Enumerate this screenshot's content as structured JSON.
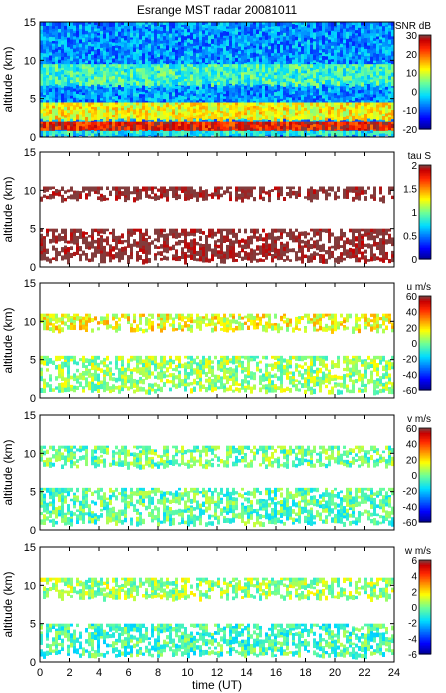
{
  "chart_data": {
    "type": "heatmap",
    "title": "Esrange MST radar 20081011",
    "xlabel": "time (UT)",
    "x_ticks": [
      0,
      2,
      4,
      6,
      8,
      10,
      12,
      14,
      16,
      18,
      20,
      22,
      24
    ],
    "xlim": [
      0,
      24
    ],
    "panels": [
      {
        "ylabel": "altitude (km)",
        "ylim": [
          0,
          15
        ],
        "y_ticks": [
          0,
          5,
          10,
          15
        ],
        "colorbar": {
          "label": "SNR dB",
          "range": [
            -20,
            30
          ],
          "ticks": [
            30,
            20,
            10,
            0,
            -10,
            -20
          ]
        },
        "layers": [
          {
            "alt_range": [
              0.3,
              15.0
            ],
            "value": -6
          },
          {
            "alt_range": [
              7.0,
              9.5
            ],
            "value": 2
          },
          {
            "alt_range": [
              2.5,
              4.5
            ],
            "value": 12
          },
          {
            "alt_range": [
              1.0,
              2.0
            ],
            "value": 25
          },
          {
            "alt_range": [
              0.4,
              0.8
            ],
            "value": 0
          }
        ]
      },
      {
        "ylabel": "altitude (km)",
        "ylim": [
          0,
          15
        ],
        "y_ticks": [
          0,
          5,
          10,
          15
        ],
        "colorbar": {
          "label": "tau S",
          "range": [
            0,
            2
          ],
          "ticks": [
            2,
            1.5,
            1,
            0.5,
            0
          ]
        },
        "layers": [
          {
            "alt_range": [
              9.0,
              10.5
            ],
            "value": 2.0
          },
          {
            "alt_range": [
              1.0,
              5.0
            ],
            "value": 2.0
          }
        ]
      },
      {
        "ylabel": "altitude (km)",
        "ylim": [
          0,
          15
        ],
        "y_ticks": [
          0,
          5,
          10,
          15
        ],
        "colorbar": {
          "label": "u m/s",
          "range": [
            -60,
            60
          ],
          "ticks": [
            60,
            40,
            20,
            0,
            -20,
            -40,
            -60
          ]
        },
        "layers": [
          {
            "alt_range": [
              9.0,
              11.0
            ],
            "value": 15
          },
          {
            "alt_range": [
              1.0,
              5.5
            ],
            "value": 5
          }
        ]
      },
      {
        "ylabel": "altitude (km)",
        "ylim": [
          0,
          15
        ],
        "y_ticks": [
          0,
          5,
          10,
          15
        ],
        "colorbar": {
          "label": "v m/s",
          "range": [
            -60,
            60
          ],
          "ticks": [
            60,
            40,
            20,
            0,
            -20,
            -40,
            -60
          ]
        },
        "layers": [
          {
            "alt_range": [
              8.5,
              11.0
            ],
            "value": 0
          },
          {
            "alt_range": [
              1.0,
              5.5
            ],
            "value": -3
          }
        ]
      },
      {
        "ylabel": "altitude (km)",
        "ylim": [
          0,
          15
        ],
        "y_ticks": [
          0,
          5,
          10,
          15
        ],
        "colorbar": {
          "label": "w m/s",
          "range": [
            -6,
            6
          ],
          "ticks": [
            6,
            4,
            2,
            0,
            -2,
            -4,
            -6
          ]
        },
        "layers": [
          {
            "alt_range": [
              8.5,
              11.0
            ],
            "value": 0.5
          },
          {
            "alt_range": [
              1.0,
              5.0
            ],
            "value": -0.5
          }
        ]
      }
    ]
  }
}
